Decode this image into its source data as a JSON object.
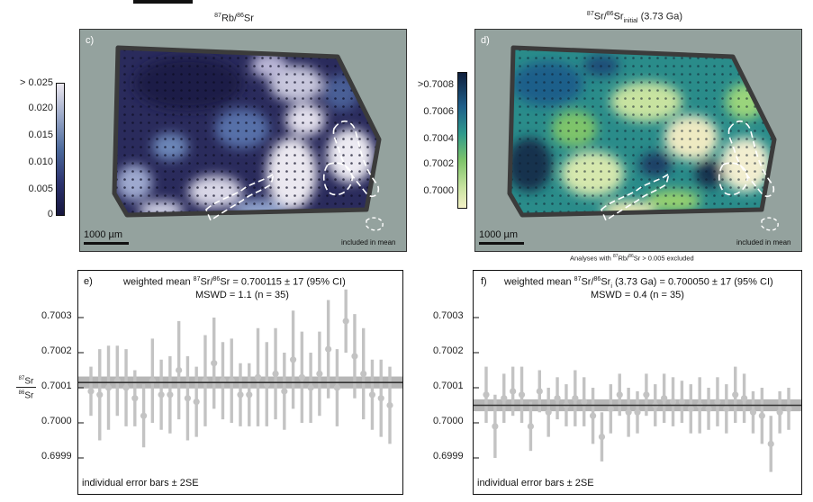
{
  "maps": {
    "left": {
      "label": "c)",
      "title": {
        "sup1": "87",
        "main1": "Rb/",
        "sup2": "86",
        "main2": "Sr"
      },
      "colorbar": {
        "ticks": [
          "> 0.025",
          "0.020",
          "0.015",
          "0.010",
          "0.005",
          "0"
        ]
      },
      "scale_bar": "1000 µm",
      "legend_text": "included in mean",
      "colors": {
        "low": "#16163e",
        "mid": "#4c6a9c",
        "high": "#e9e4ee"
      }
    },
    "right": {
      "label": "d)",
      "title": {
        "sup1": "87",
        "main1": "Sr/",
        "sup2": "86",
        "main2": "Sr",
        "sub": "initial",
        "suffix": " (3.73 Ga)"
      },
      "colorbar": {
        "ticks": [
          ">0.7008",
          "0.7006",
          "0.7004",
          "0.7002",
          "0.7000"
        ]
      },
      "scale_bar": "1000 µm",
      "legend_text": "included in mean",
      "note": {
        "pre": "Analyses with ",
        "sup1": "87",
        "mid": "Rb/",
        "sup2": "86",
        "post": "Sr > 0.005 excluded"
      },
      "colors": {
        "low": "#f3f0c4",
        "mid": "#7ec46a",
        "high": "#0f1f3c"
      }
    }
  },
  "chart_data": [
    {
      "type": "scatter",
      "panel_label": "e)",
      "annotation_line1": {
        "pre": "weighted mean ",
        "sup1": "87",
        "mid": "Sr/",
        "sup2": "86",
        "post": "Sr = 0.700115 ± 17 (95% CI)"
      },
      "annotation_line2": "MSWD = 1.1 (n = 35)",
      "footer": "individual error bars ± 2SE",
      "ylabel": {
        "num_sup": "87",
        "num": "Sr",
        "den_sup": "86",
        "den": "Sr"
      },
      "ylim": [
        0.69985,
        0.70038
      ],
      "yticks": [
        "0.7003",
        "0.7002",
        "0.7001",
        "0.7000",
        "0.6999"
      ],
      "ytick_values": [
        0.7003,
        0.7002,
        0.7001,
        0.7,
        0.6999
      ],
      "weighted_mean": 0.700115,
      "band": [
        0.700098,
        0.700132
      ],
      "y": [
        0.70009,
        0.70008,
        0.7001,
        0.70012,
        0.7001,
        0.70007,
        0.70002,
        0.70012,
        0.70008,
        0.70008,
        0.70015,
        0.70007,
        0.70006,
        0.70012,
        0.70017,
        0.70012,
        0.70012,
        0.70008,
        0.70008,
        0.70013,
        0.70011,
        0.70014,
        0.70009,
        0.70018,
        0.70013,
        0.7001,
        0.70014,
        0.70021,
        0.7001,
        0.70029,
        0.70019,
        0.70014,
        0.70008,
        0.70007,
        0.70005
      ],
      "err": [
        7e-05,
        0.00013,
        0.00012,
        0.0001,
        0.00011,
        8e-05,
        9e-05,
        0.00012,
        0.0001,
        0.00011,
        0.00014,
        0.00012,
        0.0001,
        0.00013,
        0.00013,
        0.00011,
        0.00012,
        9e-05,
        9e-05,
        0.00014,
        0.00012,
        0.00013,
        0.00011,
        0.00014,
        0.00013,
        0.0001,
        0.00012,
        0.00014,
        0.00011,
        9e-05,
        0.00012,
        0.00013,
        0.0001,
        0.00011,
        0.00011
      ],
      "colors": {
        "point": "#c3c3c3",
        "band": "#a9a9a9",
        "mean": "#333333"
      }
    },
    {
      "type": "scatter",
      "panel_label": "f)",
      "annotation_line1": {
        "pre": "weighted mean ",
        "sup1": "87",
        "mid": "Sr/",
        "sup2": "86",
        "post": "Sr",
        "sub": "i",
        "post2": " (3.73 Ga) = 0.700050 ± 17 (95% CI)"
      },
      "annotation_line2": "MSWD = 0.4 (n = 35)",
      "footer": "individual error bars ± 2SE",
      "ylim": [
        0.69985,
        0.70038
      ],
      "yticks": [
        "0.7003",
        "0.7002",
        "0.7001",
        "0.7000",
        "0.6999"
      ],
      "ytick_values": [
        0.7003,
        0.7002,
        0.7001,
        0.7,
        0.6999
      ],
      "weighted_mean": 0.70005,
      "band": [
        0.700033,
        0.700067
      ],
      "y": [
        0.70008,
        0.69999,
        0.70007,
        0.70009,
        0.70008,
        0.69999,
        0.70009,
        0.70003,
        0.70007,
        0.70005,
        0.70007,
        0.70006,
        0.70002,
        0.69996,
        0.70004,
        0.70008,
        0.70003,
        0.70003,
        0.70008,
        0.70005,
        0.70007,
        0.70006,
        0.70006,
        0.70004,
        0.70005,
        0.70004,
        0.70006,
        0.70004,
        0.70008,
        0.70007,
        0.70003,
        0.70002,
        0.69994,
        0.70003,
        0.70004
      ],
      "err": [
        8e-05,
        9e-05,
        7e-05,
        7e-05,
        8e-05,
        7e-05,
        6e-05,
        7e-05,
        6e-05,
        6e-05,
        8e-05,
        7e-05,
        8e-05,
        7e-05,
        7e-05,
        6e-05,
        7e-05,
        6e-05,
        6e-05,
        6e-05,
        7e-05,
        7e-05,
        6e-05,
        7e-05,
        8e-05,
        6e-05,
        7e-05,
        7e-05,
        8e-05,
        7e-05,
        6e-05,
        8e-05,
        8e-05,
        6e-05,
        6e-05
      ],
      "colors": {
        "point": "#c3c3c3",
        "band": "#a9a9a9",
        "mean": "#333333"
      }
    }
  ]
}
